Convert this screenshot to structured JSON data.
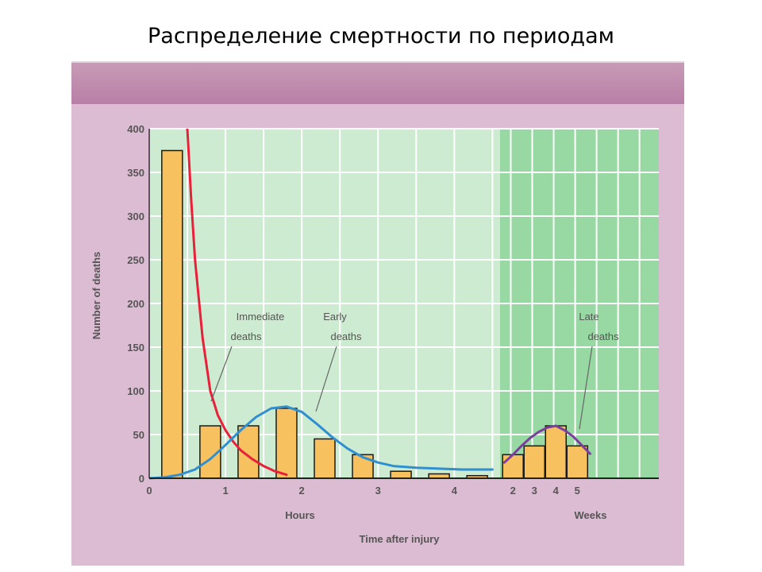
{
  "slide": {
    "title": "Распределение смертности по периодам"
  },
  "chart_data": {
    "type": "bar",
    "ylabel": "Number of deaths",
    "xlabel": "Time after injury",
    "ylim": [
      0,
      400
    ],
    "y_ticks": [
      0,
      50,
      100,
      150,
      200,
      250,
      300,
      350,
      400
    ],
    "hours_axis": {
      "label": "Hours",
      "ticks": [
        "0",
        "1",
        "2",
        "3",
        "4"
      ],
      "xlim": [
        0,
        4.6
      ]
    },
    "weeks_axis": {
      "label": "Weeks",
      "ticks": [
        "2",
        "3",
        "4",
        "5"
      ],
      "xlim": [
        1.5,
        5.2
      ]
    },
    "bars_hours": [
      {
        "x": 0.3,
        "value": 375
      },
      {
        "x": 0.8,
        "value": 60
      },
      {
        "x": 1.3,
        "value": 60
      },
      {
        "x": 1.8,
        "value": 80
      },
      {
        "x": 2.3,
        "value": 45
      },
      {
        "x": 2.8,
        "value": 27
      },
      {
        "x": 3.3,
        "value": 8
      },
      {
        "x": 3.8,
        "value": 5
      },
      {
        "x": 4.3,
        "value": 3
      }
    ],
    "bars_weeks": [
      {
        "x": 1.8,
        "value": 27
      },
      {
        "x": 2.3,
        "value": 37
      },
      {
        "x": 2.8,
        "value": 60
      },
      {
        "x": 3.3,
        "value": 37
      }
    ],
    "series": [
      {
        "name": "Immediate deaths",
        "color": "#e8203a",
        "x": [
          0.5,
          0.55,
          0.6,
          0.7,
          0.8,
          0.9,
          1.0,
          1.1,
          1.2,
          1.35,
          1.5,
          1.65,
          1.8
        ],
        "values": [
          400,
          320,
          250,
          160,
          100,
          72,
          55,
          42,
          32,
          22,
          14,
          8,
          4
        ]
      },
      {
        "name": "Early deaths",
        "color": "#2f8fd0",
        "x": [
          0,
          0.2,
          0.4,
          0.6,
          0.8,
          1.0,
          1.2,
          1.4,
          1.6,
          1.8,
          2.0,
          2.2,
          2.4,
          2.6,
          2.8,
          3.0,
          3.2,
          3.5,
          3.8,
          4.1,
          4.5
        ],
        "values": [
          0,
          1,
          4,
          10,
          22,
          38,
          55,
          70,
          80,
          82,
          76,
          62,
          47,
          34,
          24,
          18,
          14,
          12,
          11,
          10,
          10
        ]
      },
      {
        "name": "Late deaths",
        "color": "#7b3f9e",
        "x": [
          1.6,
          1.8,
          2.0,
          2.2,
          2.4,
          2.6,
          2.8,
          3.0,
          3.2,
          3.4,
          3.6
        ],
        "values": [
          18,
          27,
          37,
          46,
          53,
          58,
          60,
          55,
          48,
          38,
          28
        ]
      }
    ],
    "annotations": {
      "immediate": [
        "Immediate",
        "deaths"
      ],
      "early": [
        "Early",
        "deaths"
      ],
      "late": [
        "Late",
        "deaths"
      ]
    },
    "colors": {
      "bar_fill": "#f7c160",
      "bar_stroke": "#1a1a1a",
      "hours_bg": "#cdebd0",
      "weeks_bg": "#98d8a2",
      "grid": "#ffffff",
      "axis_text": "#555555"
    }
  }
}
